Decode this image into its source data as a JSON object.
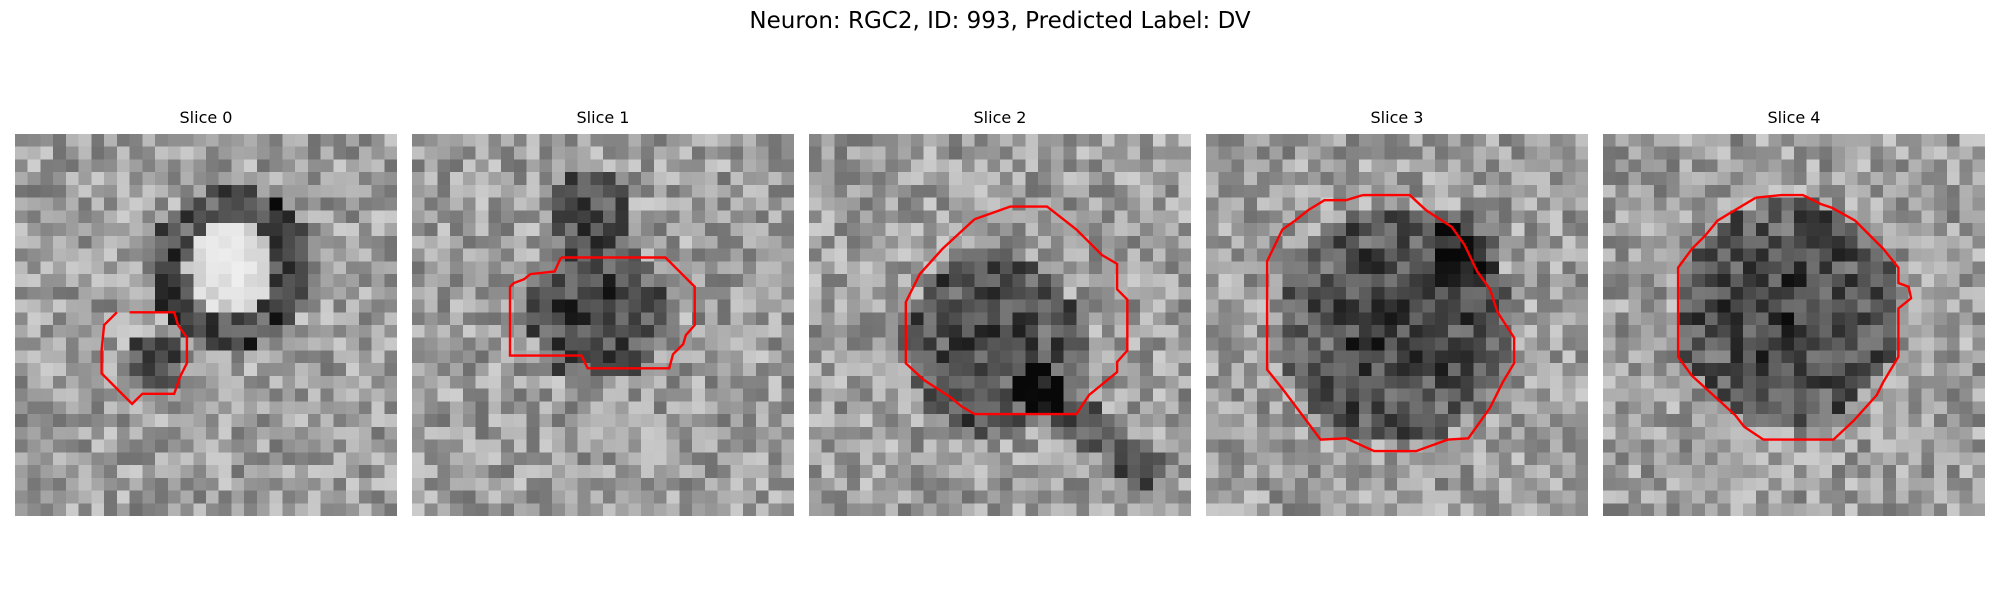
{
  "figure": {
    "title": "Neuron: RGC2, ID: 993, Predicted Label: DV"
  },
  "colors": {
    "contour": "#ff0000",
    "background": "#ffffff"
  },
  "image": {
    "colormap": "grayscale",
    "grid_size": 30
  },
  "panels": [
    {
      "label": "Slice 0",
      "seed": 11,
      "bright_blob": {
        "cx": 17,
        "cy": 10.5,
        "r": 3.5
      },
      "dark_ring": {
        "cx": 17,
        "cy": 10.5,
        "r_inner": 3.5,
        "r_outer": 6.5
      },
      "dark_blob": {
        "cx": 11,
        "cy": 18,
        "r": 2.5
      },
      "contour": [
        [
          8,
          14
        ],
        [
          7,
          15
        ],
        [
          6.8,
          17
        ],
        [
          6.8,
          18.8
        ],
        [
          9,
          21
        ],
        [
          9.2,
          21.2
        ],
        [
          10,
          20.4
        ],
        [
          12.5,
          20.4
        ],
        [
          13,
          19
        ],
        [
          13.5,
          18
        ],
        [
          13.5,
          16
        ],
        [
          12.8,
          15
        ],
        [
          12.5,
          14
        ],
        [
          9,
          14
        ]
      ]
    },
    {
      "label": "Slice 1",
      "seed": 23,
      "dark_blob": {
        "cx": 14.5,
        "cy": 14,
        "r": 5.5
      },
      "dark_blob_2": {
        "cx": 14,
        "cy": 6,
        "r": 3.5
      },
      "contour": [
        [
          11.7,
          9.7
        ],
        [
          19.9,
          9.7
        ],
        [
          20.7,
          10.5
        ],
        [
          22.2,
          12
        ],
        [
          22.2,
          15
        ],
        [
          21.5,
          15.8
        ],
        [
          21.3,
          16.5
        ],
        [
          20.5,
          17.3
        ],
        [
          20.2,
          18.4
        ],
        [
          16.1,
          18.4
        ],
        [
          13.8,
          18.4
        ],
        [
          13.3,
          17.4
        ],
        [
          7.7,
          17.4
        ],
        [
          7.7,
          12
        ],
        [
          8,
          11.7
        ],
        [
          8.8,
          11.4
        ],
        [
          9.3,
          11
        ],
        [
          11.2,
          10.8
        ],
        [
          11.7,
          9.7
        ]
      ]
    },
    {
      "label": "Slice 2",
      "seed": 37,
      "dark_blob": {
        "cx": 14.5,
        "cy": 16.5,
        "r": 7.2
      },
      "dark_tail": {
        "x1": 18,
        "y1": 20,
        "x2": 26,
        "y2": 26,
        "w": 1.6
      },
      "contour": [
        [
          13,
          6.7
        ],
        [
          15.8,
          5.7
        ],
        [
          18.7,
          5.7
        ],
        [
          21,
          7.5
        ],
        [
          23,
          9.5
        ],
        [
          24.2,
          10.2
        ],
        [
          24.2,
          12.2
        ],
        [
          25,
          13
        ],
        [
          25,
          17
        ],
        [
          24.2,
          17.9
        ],
        [
          24.2,
          18.7
        ],
        [
          22,
          20.5
        ],
        [
          21,
          22
        ],
        [
          13,
          22
        ],
        [
          12,
          21.4
        ],
        [
          11,
          20.6
        ],
        [
          9,
          19.3
        ],
        [
          7.6,
          18
        ],
        [
          7.6,
          13.2
        ],
        [
          8.7,
          11
        ],
        [
          10.5,
          9
        ],
        [
          13,
          6.7
        ]
      ]
    },
    {
      "label": "Slice 3",
      "seed": 53,
      "dark_blob": {
        "cx": 15,
        "cy": 15,
        "r": 9.2
      },
      "dark_edge": {
        "cx": 20.5,
        "cy": 9,
        "r": 3
      },
      "contour": [
        [
          12.3,
          4.8
        ],
        [
          16,
          4.8
        ],
        [
          17.3,
          6
        ],
        [
          19.3,
          7.3
        ],
        [
          20.3,
          8.7
        ],
        [
          21.3,
          10.8
        ],
        [
          22.3,
          12.2
        ],
        [
          22.9,
          14
        ],
        [
          24.2,
          16
        ],
        [
          24.2,
          18
        ],
        [
          23.3,
          19.5
        ],
        [
          22.3,
          21.5
        ],
        [
          20.6,
          23.9
        ],
        [
          19,
          24
        ],
        [
          16.5,
          24.9
        ],
        [
          15.7,
          24.9
        ],
        [
          13.2,
          24.9
        ],
        [
          11,
          23.9
        ],
        [
          9,
          24
        ],
        [
          7.5,
          22
        ],
        [
          6,
          20
        ],
        [
          4.8,
          18.5
        ],
        [
          4.8,
          10
        ],
        [
          6,
          7.5
        ],
        [
          7,
          6.8
        ],
        [
          8,
          6
        ],
        [
          9.3,
          5.2
        ],
        [
          11,
          5.2
        ],
        [
          12.3,
          4.8
        ]
      ]
    },
    {
      "label": "Slice 4",
      "seed": 71,
      "dark_blob": {
        "cx": 14.5,
        "cy": 14,
        "r": 8.8
      },
      "contour": [
        [
          12,
          5
        ],
        [
          14,
          4.8
        ],
        [
          15.7,
          4.8
        ],
        [
          17.1,
          5.5
        ],
        [
          18,
          5.8
        ],
        [
          19.8,
          6.8
        ],
        [
          22,
          9
        ],
        [
          23.2,
          10.5
        ],
        [
          23.2,
          11.7
        ],
        [
          24,
          12
        ],
        [
          24.2,
          12.9
        ],
        [
          23.2,
          13.7
        ],
        [
          23.2,
          17.5
        ],
        [
          22,
          19.5
        ],
        [
          21.5,
          20.5
        ],
        [
          19.7,
          22.5
        ],
        [
          18.1,
          24
        ],
        [
          12.6,
          24
        ],
        [
          11.1,
          23
        ],
        [
          10.4,
          22.1
        ],
        [
          9.2,
          21
        ],
        [
          7,
          19
        ],
        [
          5.9,
          17.5
        ],
        [
          5.9,
          10.5
        ],
        [
          7,
          9
        ],
        [
          8,
          8
        ],
        [
          9,
          6.8
        ],
        [
          10,
          6.2
        ],
        [
          12,
          5
        ]
      ]
    }
  ]
}
